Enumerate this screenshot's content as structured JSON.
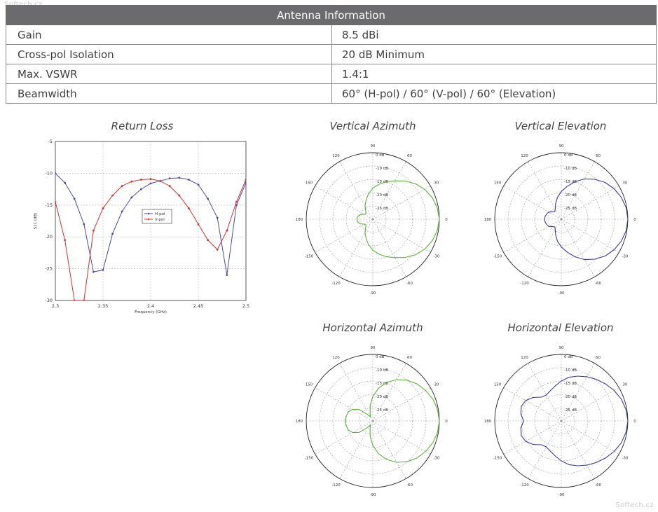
{
  "watermark_top": "Softech.cz",
  "watermark_bottom": "Softech.cz",
  "table": {
    "title": "Antenna Information",
    "rows": [
      {
        "label": "Gain",
        "value": "8.5 dBi"
      },
      {
        "label": "Cross-pol Isolation",
        "value": "20 dB Minimum"
      },
      {
        "label": "Max. VSWR",
        "value": "1.4:1"
      },
      {
        "label": "Beamwidth",
        "value": "60° (H-pol) / 60° (V-pol) / 60° (Elevation)"
      }
    ]
  },
  "chart_data": [
    {
      "type": "line",
      "title": "Return Loss",
      "xlabel": "Frequency (GHz)",
      "ylabel": "S11 (dB)",
      "xlim": [
        2.3,
        2.5
      ],
      "ylim": [
        -30,
        -5
      ],
      "xticks": [
        "2.3",
        "2.35",
        "2.4",
        "2.45",
        "2.5"
      ],
      "yticks": [
        "-5",
        "-10",
        "-15",
        "-20",
        "-25",
        "-30"
      ],
      "grid": true,
      "legend": "center-right",
      "colors": {
        "H-pol": "#4a4aa8",
        "V-pol": "#d03030"
      },
      "x": [
        2.3,
        2.31,
        2.32,
        2.33,
        2.34,
        2.35,
        2.36,
        2.37,
        2.38,
        2.39,
        2.4,
        2.41,
        2.42,
        2.43,
        2.44,
        2.45,
        2.46,
        2.47,
        2.48,
        2.49,
        2.5
      ],
      "series": [
        {
          "name": "H-pol",
          "values": [
            -10,
            -11.5,
            -14,
            -18,
            -25.5,
            -25.2,
            -19.5,
            -16,
            -13.8,
            -12.5,
            -11.6,
            -11.2,
            -10.8,
            -10.7,
            -11,
            -11.8,
            -14,
            -17,
            -26,
            -15,
            -11.5
          ]
        },
        {
          "name": "V-pol",
          "values": [
            -14.5,
            -20.5,
            -30,
            -30,
            -19,
            -15.5,
            -13.5,
            -12,
            -11.3,
            -11,
            -10.9,
            -11.2,
            -12,
            -13.5,
            -15.5,
            -18,
            -20.5,
            -22,
            -19,
            -14.5,
            -11
          ]
        }
      ]
    },
    {
      "type": "polar",
      "title": "Vertical Azimuth",
      "color": "#5cb03a",
      "angle_labels": [
        "0",
        "30",
        "60",
        "90",
        "120",
        "150",
        "180",
        "-150",
        "-120",
        "-90",
        "-60",
        "-30"
      ],
      "radial_labels": [
        "0 dB",
        "-10 dB",
        "-15 dB",
        "-20 dB",
        "-25 dB"
      ],
      "rlim_db": [
        -30,
        0
      ],
      "angles_deg": [
        0,
        10,
        20,
        30,
        40,
        50,
        60,
        70,
        80,
        90,
        100,
        110,
        120,
        130,
        140,
        150,
        160,
        170,
        180,
        190,
        200,
        210,
        220,
        230,
        240,
        250,
        260,
        270,
        280,
        290,
        300,
        310,
        320,
        330,
        340,
        350
      ],
      "gain_db": [
        0,
        -0.5,
        -1.5,
        -3,
        -5,
        -7.5,
        -10,
        -12,
        -14,
        -16,
        -18.5,
        -21,
        -23,
        -25,
        -26,
        -25.5,
        -24,
        -23,
        -22.8,
        -23,
        -24,
        -25.5,
        -26,
        -25,
        -23,
        -21,
        -18.5,
        -16,
        -14,
        -12,
        -10,
        -7.5,
        -5,
        -3,
        -1.5,
        -0.5
      ]
    },
    {
      "type": "polar",
      "title": "Vertical Elevation",
      "color": "#3a3a9a",
      "angle_labels": [
        "0",
        "30",
        "60",
        "90",
        "120",
        "150",
        "180",
        "-150",
        "-120",
        "-90",
        "-60",
        "-30"
      ],
      "radial_labels": [
        "0 dB",
        "-10 dB",
        "-15 dB",
        "-20 dB",
        "-25 dB"
      ],
      "rlim_db": [
        -30,
        0
      ],
      "angles_deg": [
        0,
        10,
        20,
        30,
        40,
        50,
        60,
        70,
        80,
        90,
        100,
        110,
        120,
        130,
        140,
        150,
        160,
        170,
        180,
        190,
        200,
        210,
        220,
        230,
        240,
        250,
        260,
        270,
        280,
        290,
        300,
        310,
        320,
        330,
        340,
        350
      ],
      "gain_db": [
        0,
        -0.3,
        -1.2,
        -2.5,
        -4.2,
        -6.5,
        -9,
        -12,
        -15,
        -17.5,
        -20,
        -22.5,
        -24.5,
        -25.5,
        -24.8,
        -23.5,
        -23,
        -22.6,
        -22.5,
        -22.6,
        -23,
        -23.5,
        -24.8,
        -25.5,
        -24.5,
        -22.5,
        -20,
        -17.5,
        -15,
        -12,
        -9,
        -6.5,
        -4.2,
        -2.5,
        -1.2,
        -0.3
      ]
    },
    {
      "type": "polar",
      "title": "Horizontal Azimuth",
      "color": "#5cb03a",
      "angle_labels": [
        "0",
        "30",
        "60",
        "90",
        "120",
        "150",
        "180",
        "-150",
        "-120",
        "-90",
        "-60",
        "-30"
      ],
      "radial_labels": [
        "0 dB",
        "-10 dB",
        "-15 dB",
        "-20 dB",
        "-25 dB"
      ],
      "rlim_db": [
        -30,
        0
      ],
      "angles_deg": [
        0,
        10,
        20,
        30,
        40,
        50,
        60,
        70,
        80,
        90,
        100,
        110,
        120,
        130,
        140,
        150,
        160,
        170,
        180,
        190,
        200,
        210,
        220,
        230,
        240,
        250,
        260,
        270,
        280,
        290,
        300,
        310,
        320,
        330,
        340,
        350
      ],
      "gain_db": [
        0,
        -0.4,
        -1.2,
        -2.5,
        -4,
        -6,
        -8.5,
        -11.5,
        -15,
        -19,
        -23,
        -26.5,
        -28,
        -26,
        -22,
        -19.5,
        -18.2,
        -17.8,
        -17.5,
        -17.8,
        -18.2,
        -19.5,
        -22,
        -26,
        -28,
        -26.5,
        -23,
        -19,
        -15,
        -11.5,
        -8.5,
        -6,
        -4,
        -2.5,
        -1.2,
        -0.4
      ]
    },
    {
      "type": "polar",
      "title": "Horizontal Elevation",
      "color": "#3a3a9a",
      "angle_labels": [
        "0",
        "30",
        "60",
        "90",
        "120",
        "150",
        "180",
        "-150",
        "-120",
        "-90",
        "-60",
        "-30"
      ],
      "radial_labels": [
        "0 dB",
        "-10 dB",
        "-15 dB",
        "-20 dB",
        "-25 dB"
      ],
      "rlim_db": [
        -30,
        0
      ],
      "angles_deg": [
        0,
        10,
        20,
        30,
        40,
        50,
        60,
        70,
        80,
        90,
        100,
        110,
        120,
        130,
        140,
        150,
        160,
        170,
        180,
        190,
        200,
        210,
        220,
        230,
        240,
        250,
        260,
        270,
        280,
        290,
        300,
        310,
        320,
        330,
        340,
        350
      ],
      "gain_db": [
        0,
        -0.4,
        -1.2,
        -2.5,
        -4,
        -5.5,
        -7,
        -8.5,
        -10,
        -12,
        -14,
        -15.5,
        -16.5,
        -16,
        -13.5,
        -11.5,
        -10.8,
        -11.5,
        -13,
        -11.5,
        -10.8,
        -11.5,
        -13.5,
        -16,
        -16.5,
        -15.5,
        -14,
        -12,
        -10,
        -8.5,
        -7,
        -5.5,
        -4,
        -2.5,
        -1.2,
        -0.4
      ]
    }
  ]
}
